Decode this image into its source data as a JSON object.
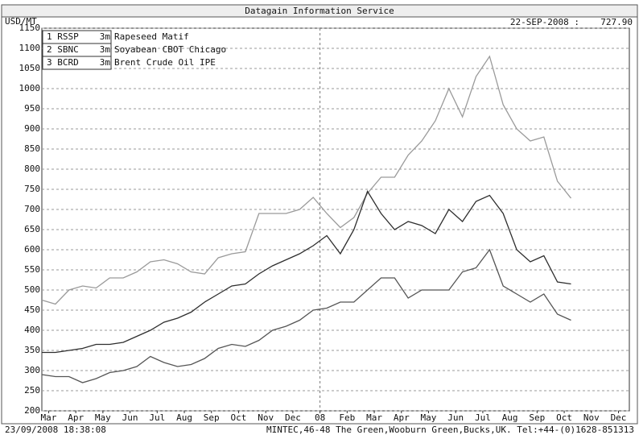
{
  "chart_data": {
    "type": "line",
    "title": "Datagain Information Service",
    "y_label": "USD/MT",
    "date_label": "22-SEP-2008 :",
    "last_value": {
      "value": 727.9,
      "label": "727.90"
    },
    "footer_left": "23/09/2008 18:38:08",
    "footer_right": "MINTEC,46-48 The Green,Wooburn Green,Bucks,UK. Tel:+44-(0)1628-851313",
    "x": [
      -0.25,
      0.25,
      0.75,
      1.25,
      1.75,
      2.25,
      2.75,
      3.25,
      3.75,
      4.25,
      4.75,
      5.25,
      5.75,
      6.25,
      6.75,
      7.25,
      7.75,
      8.25,
      8.75,
      9.25,
      9.75,
      10.25,
      10.75,
      11.25,
      11.75,
      12.25,
      12.75,
      13.25,
      13.75,
      14.25,
      14.75,
      15.25,
      15.75,
      16.25,
      16.75,
      17.25,
      17.75,
      18.25,
      18.75,
      19.25
    ],
    "series": [
      {
        "name": "Rapeseed Matif",
        "code": "1 RSSP",
        "contract": "3m",
        "color": "#9a9a9a",
        "values": [
          475,
          465,
          500,
          510,
          505,
          530,
          530,
          545,
          570,
          575,
          565,
          545,
          540,
          580,
          590,
          595,
          690,
          690,
          690,
          700,
          730,
          690,
          655,
          680,
          740,
          780,
          780,
          835,
          870,
          920,
          1000,
          930,
          1030,
          1080,
          960,
          900,
          870,
          880,
          770,
          727.9
        ]
      },
      {
        "name": "Soyabean CBOT Chicago",
        "code": "2 SBNC",
        "contract": "3m",
        "color": "#2e2e2e",
        "values": [
          345,
          345,
          350,
          355,
          365,
          365,
          370,
          385,
          400,
          420,
          430,
          445,
          470,
          490,
          510,
          515,
          540,
          560,
          575,
          590,
          610,
          635,
          590,
          650,
          745,
          690,
          650,
          670,
          660,
          640,
          700,
          670,
          720,
          735,
          690,
          600,
          570,
          585,
          520,
          515
        ]
      },
      {
        "name": "Brent Crude Oil IPE",
        "code": "3 BCRD",
        "contract": "3m",
        "color": "#555555",
        "values": [
          290,
          285,
          285,
          270,
          280,
          295,
          300,
          310,
          335,
          320,
          310,
          315,
          330,
          355,
          365,
          360,
          375,
          400,
          410,
          425,
          450,
          455,
          470,
          470,
          500,
          530,
          530,
          480,
          500,
          500,
          500,
          545,
          555,
          600,
          510,
          490,
          470,
          490,
          440,
          425
        ]
      }
    ],
    "xlim": [
      -0.25,
      21.4
    ],
    "xticks": [
      {
        "value": 0,
        "label": "Mar"
      },
      {
        "value": 1,
        "label": "Apr"
      },
      {
        "value": 2,
        "label": "May"
      },
      {
        "value": 3,
        "label": "Jun"
      },
      {
        "value": 4,
        "label": "Jul"
      },
      {
        "value": 5,
        "label": "Aug"
      },
      {
        "value": 6,
        "label": "Sep"
      },
      {
        "value": 7,
        "label": "Oct"
      },
      {
        "value": 8,
        "label": "Nov"
      },
      {
        "value": 9,
        "label": "Dec"
      },
      {
        "value": 10,
        "label": "08"
      },
      {
        "value": 11,
        "label": "Feb"
      },
      {
        "value": 12,
        "label": "Mar"
      },
      {
        "value": 13,
        "label": "Apr"
      },
      {
        "value": 14,
        "label": "May"
      },
      {
        "value": 15,
        "label": "Jun"
      },
      {
        "value": 16,
        "label": "Jul"
      },
      {
        "value": 17,
        "label": "Aug"
      },
      {
        "value": 18,
        "label": "Sep"
      },
      {
        "value": 19,
        "label": "Oct"
      },
      {
        "value": 20,
        "label": "Nov"
      },
      {
        "value": 21,
        "label": "Dec"
      }
    ],
    "year_marker": 10,
    "ylim": [
      200,
      1150
    ],
    "yticks": [
      200,
      250,
      300,
      350,
      400,
      450,
      500,
      550,
      600,
      650,
      700,
      750,
      800,
      850,
      900,
      950,
      1000,
      1050,
      1100,
      1150
    ],
    "grid": true
  }
}
